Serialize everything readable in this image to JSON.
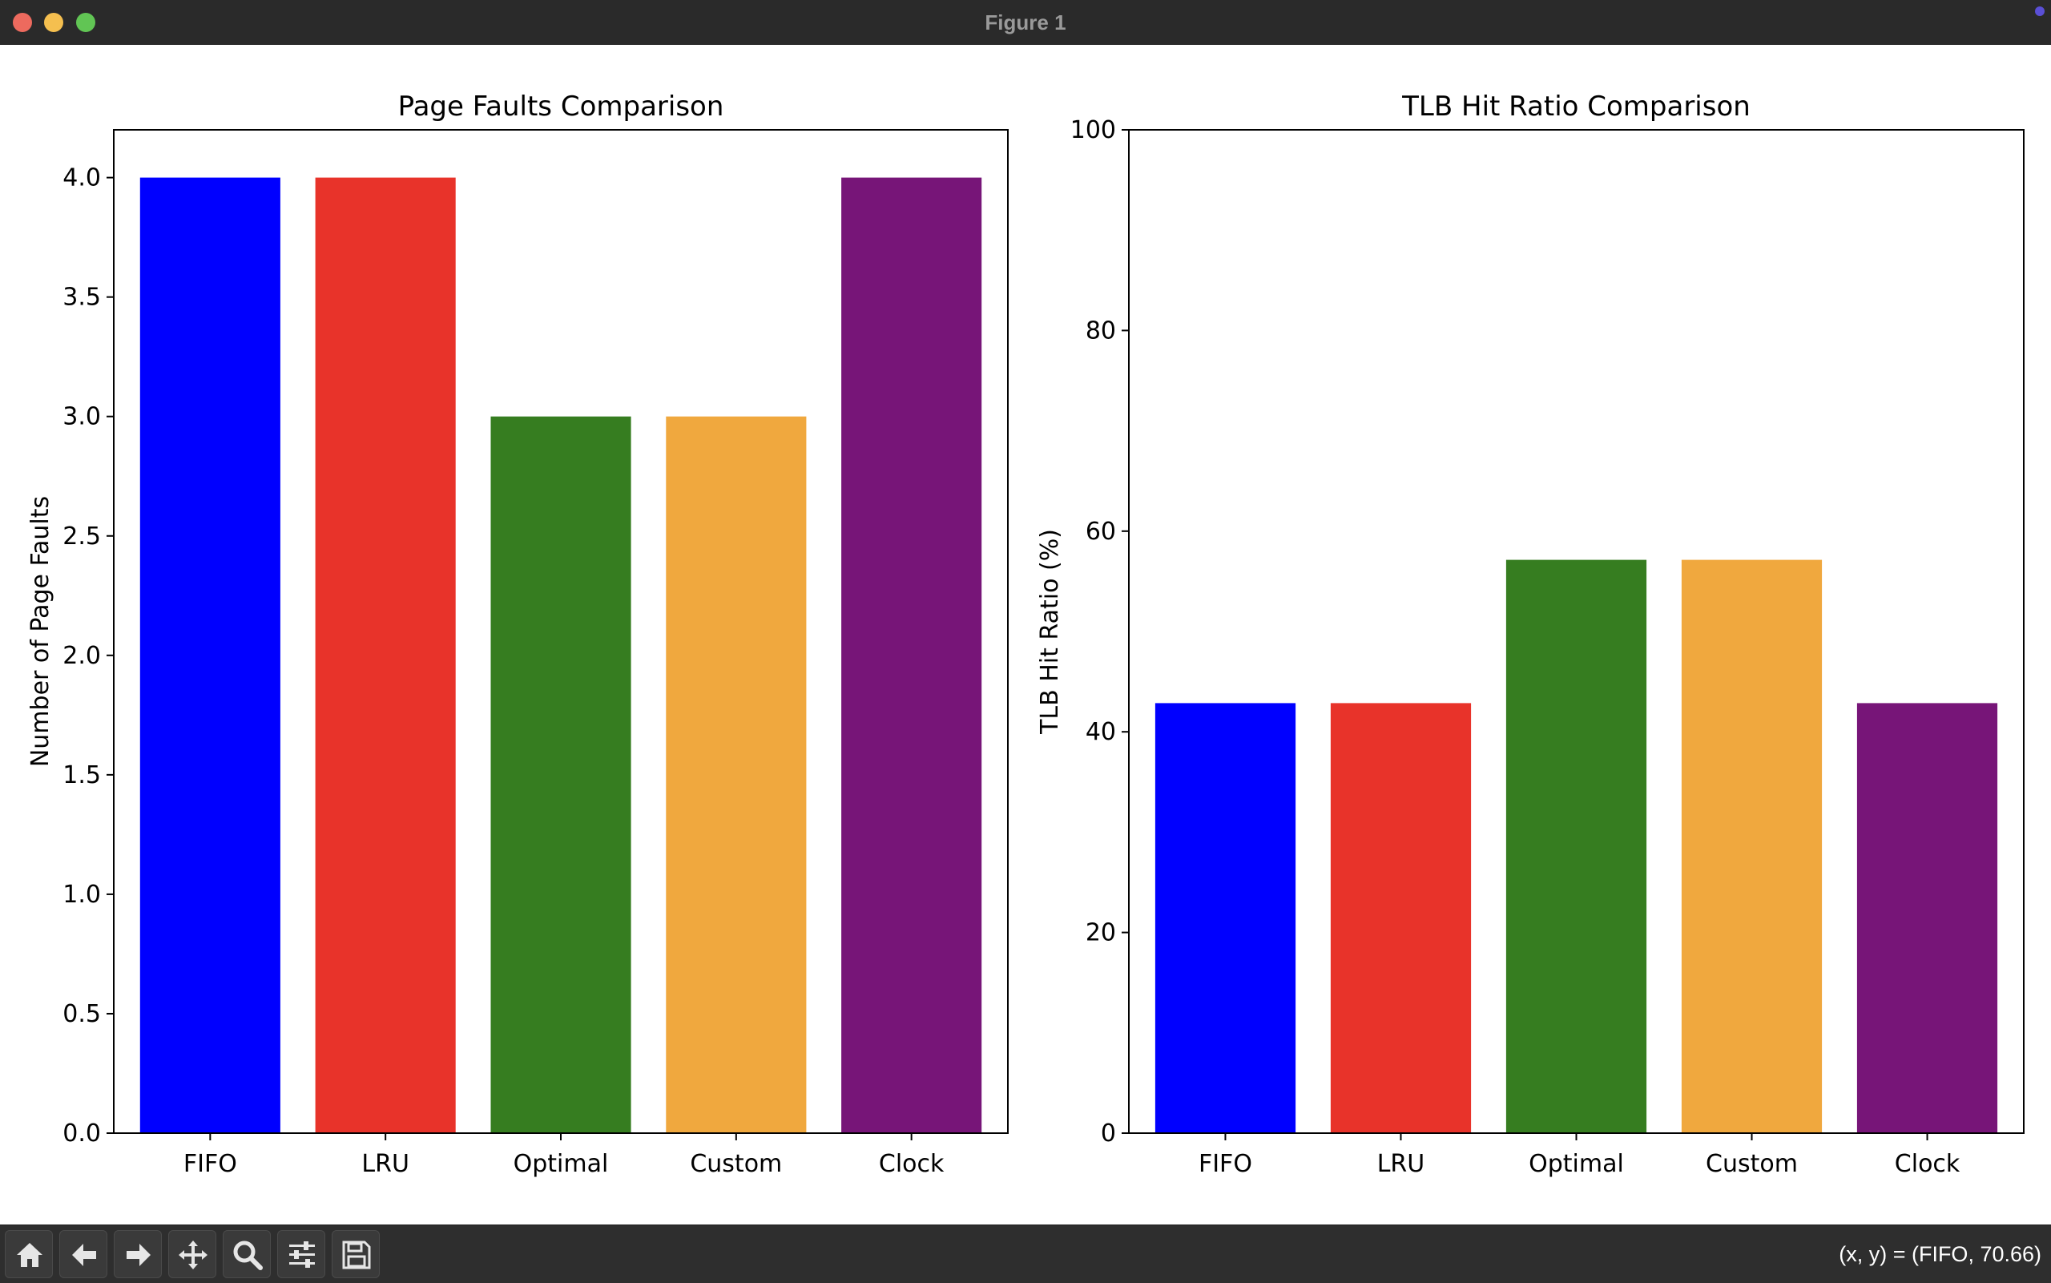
{
  "window": {
    "title": "Figure 1"
  },
  "toolbar": {
    "buttons": [
      {
        "name": "home-button",
        "icon": "home-icon"
      },
      {
        "name": "back-button",
        "icon": "arrow-left-icon"
      },
      {
        "name": "forward-button",
        "icon": "arrow-right-icon"
      },
      {
        "name": "pan-button",
        "icon": "move-icon"
      },
      {
        "name": "zoom-button",
        "icon": "search-icon"
      },
      {
        "name": "configure-subplots-button",
        "icon": "sliders-icon"
      },
      {
        "name": "save-button",
        "icon": "save-icon"
      }
    ],
    "coords_text": "(x, y) = (FIFO, 70.66)"
  },
  "chart_data": [
    {
      "type": "bar",
      "title": "Page Faults Comparison",
      "xlabel": "",
      "ylabel": "Number of Page Faults",
      "categories": [
        "FIFO",
        "LRU",
        "Optimal",
        "Custom",
        "Clock"
      ],
      "values": [
        4,
        4,
        3,
        3,
        4
      ],
      "colors": [
        "#0000ff",
        "#e8332a",
        "#367d20",
        "#f0a83e",
        "#771578"
      ],
      "ylim": [
        0,
        4.2
      ],
      "yticks": [
        "0.0",
        "0.5",
        "1.0",
        "1.5",
        "2.0",
        "2.5",
        "3.0",
        "3.5",
        "4.0"
      ],
      "ytick_values": [
        0,
        0.5,
        1,
        1.5,
        2,
        2.5,
        3,
        3.5,
        4
      ],
      "grid": false,
      "legend": "none"
    },
    {
      "type": "bar",
      "title": "TLB Hit Ratio Comparison",
      "xlabel": "",
      "ylabel": "TLB Hit Ratio (%)",
      "categories": [
        "FIFO",
        "LRU",
        "Optimal",
        "Custom",
        "Clock"
      ],
      "values": [
        42.86,
        42.86,
        57.14,
        57.14,
        42.86
      ],
      "colors": [
        "#0000ff",
        "#e8332a",
        "#367d20",
        "#f0a83e",
        "#771578"
      ],
      "ylim": [
        0,
        100
      ],
      "yticks": [
        "0",
        "20",
        "40",
        "60",
        "80",
        "100"
      ],
      "ytick_values": [
        0,
        20,
        40,
        60,
        80,
        100
      ],
      "grid": false,
      "legend": "none"
    }
  ]
}
